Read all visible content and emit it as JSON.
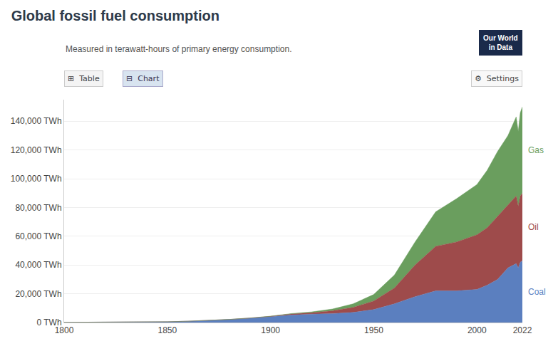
{
  "chart_data": {
    "type": "area",
    "stacked": true,
    "title": "Global fossil fuel consumption",
    "subtitle": "Measured in terawatt-hours of primary energy consumption.",
    "annotations": [
      "Our World",
      "in Data",
      "⊞  Table",
      "⊟  Chart",
      "⚙  Settings"
    ],
    "x": [
      1800,
      1810,
      1820,
      1830,
      1840,
      1850,
      1860,
      1870,
      1880,
      1890,
      1900,
      1910,
      1920,
      1930,
      1940,
      1950,
      1960,
      1970,
      1980,
      1990,
      2000,
      2005,
      2010,
      2015,
      2019,
      2020,
      2021,
      2022
    ],
    "series": [
      {
        "name": "Coal",
        "color": "#5b7fbf",
        "values": [
          150,
          170,
          200,
          260,
          380,
          550,
          900,
          1400,
          2100,
          3000,
          4000,
          5200,
          5800,
          6200,
          7000,
          9000,
          13000,
          18000,
          22000,
          22000,
          23000,
          26000,
          30000,
          38000,
          41000,
          38000,
          42000,
          43000
        ]
      },
      {
        "name": "Oil",
        "color": "#9e4b4b",
        "values": [
          0,
          0,
          0,
          0,
          0,
          0,
          10,
          20,
          50,
          100,
          300,
          700,
          1000,
          2000,
          3500,
          6000,
          11000,
          22000,
          31000,
          34000,
          38000,
          40000,
          44000,
          44000,
          47000,
          43000,
          46000,
          47000
        ]
      },
      {
        "name": "Gas",
        "color": "#6a9e5e",
        "values": [
          0,
          0,
          0,
          0,
          0,
          0,
          0,
          10,
          20,
          50,
          100,
          300,
          600,
          1200,
          2500,
          4500,
          9000,
          16000,
          24000,
          30000,
          35000,
          40000,
          45000,
          48000,
          55000,
          52000,
          58000,
          60000
        ]
      }
    ],
    "xlim": [
      1800,
      2022
    ],
    "xticks": [
      1800,
      1850,
      1900,
      1950,
      2000,
      2022
    ],
    "ylim": [
      0,
      155000
    ],
    "yticks": [
      {
        "value": 0,
        "label": "0 TWh"
      },
      {
        "value": 20000,
        "label": "20,000 TWh"
      },
      {
        "value": 40000,
        "label": "40,000 TWh"
      },
      {
        "value": 60000,
        "label": "60,000 TWh"
      },
      {
        "value": 80000,
        "label": "80,000 TWh"
      },
      {
        "value": 100000,
        "label": "100,000 TWh"
      },
      {
        "value": 120000,
        "label": "120,000 TWh"
      },
      {
        "value": 140000,
        "label": "140,000 TWh"
      }
    ],
    "grid": true
  }
}
